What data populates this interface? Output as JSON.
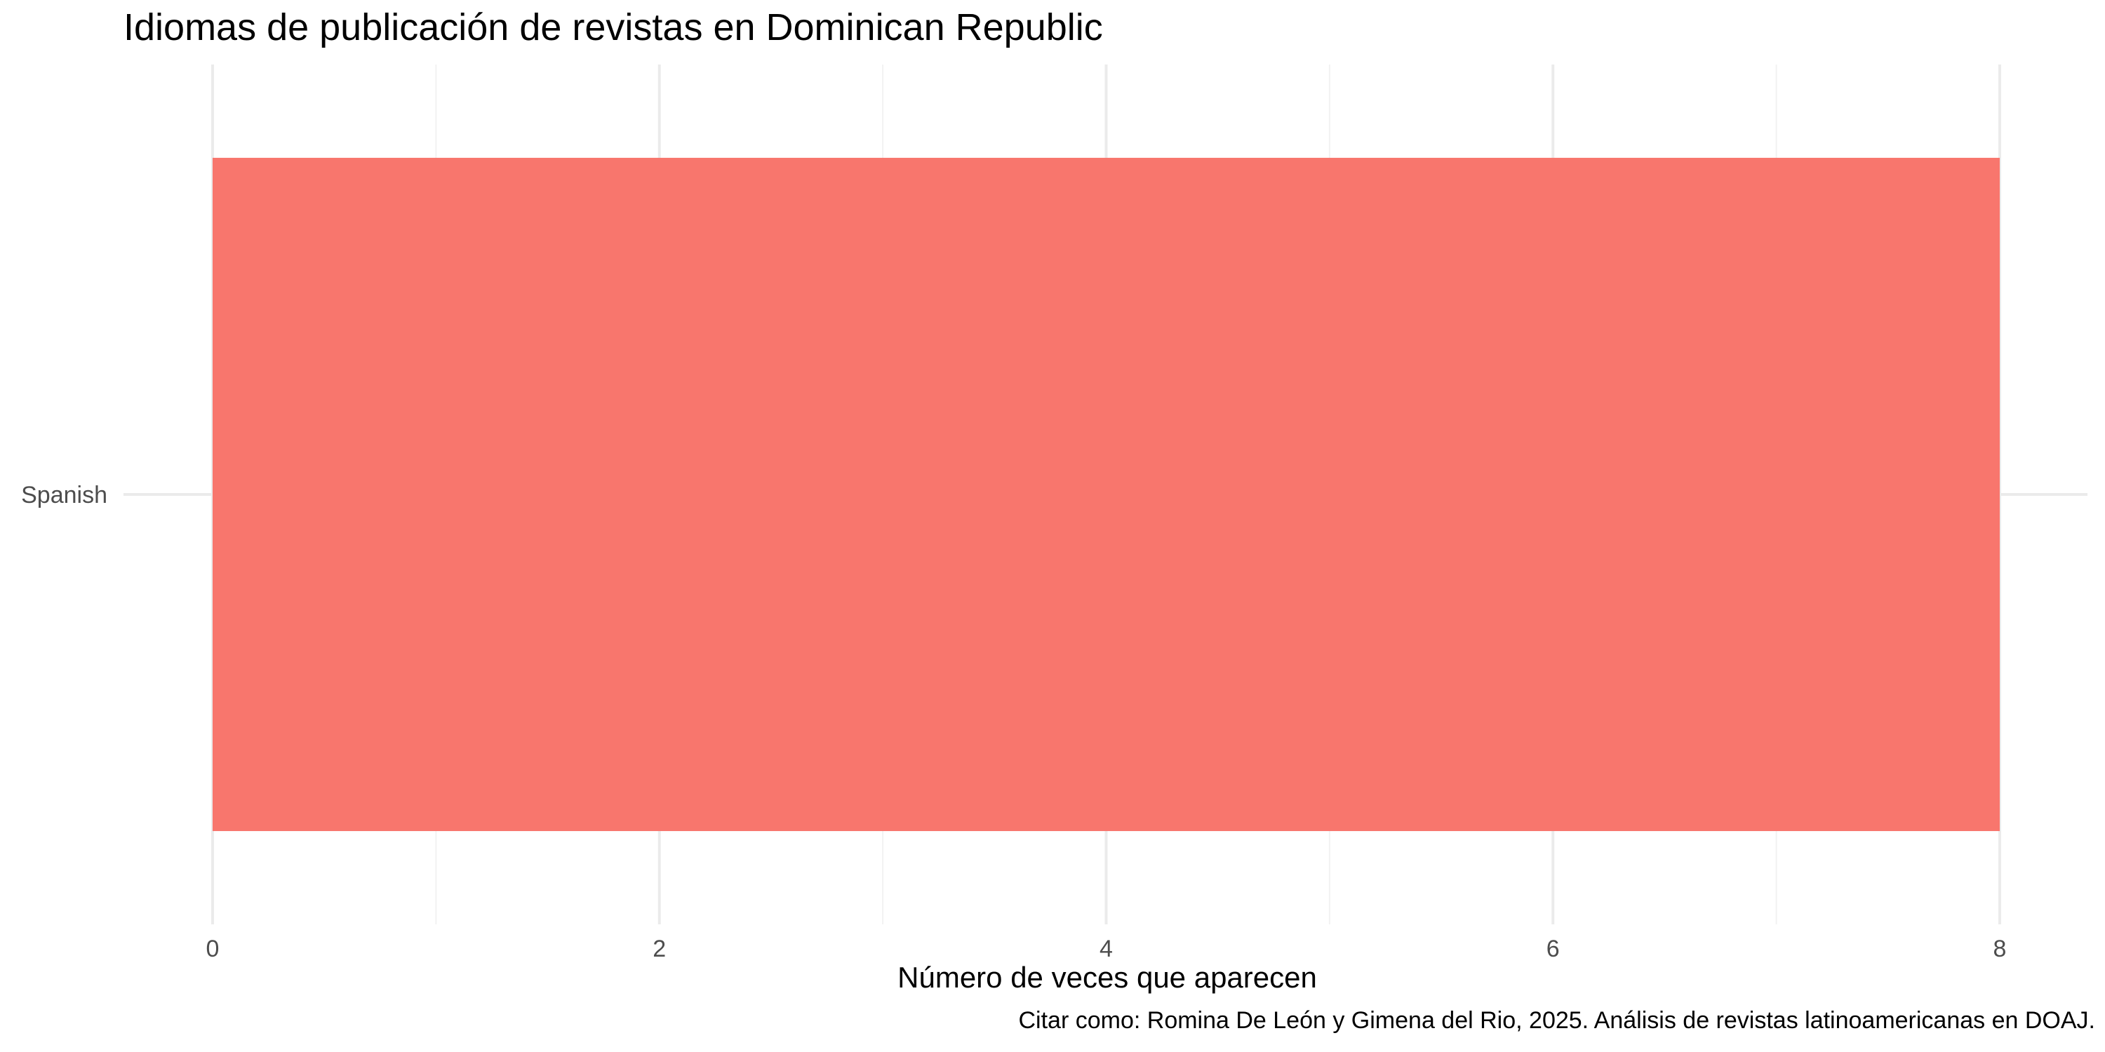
{
  "chart_data": {
    "type": "bar",
    "orientation": "horizontal",
    "title": "Idiomas de publicación de revistas en Dominican Republic",
    "xlabel": "Número de veces que aparecen",
    "ylabel": "",
    "caption": "Citar como: Romina De León y Gimena del Rio, 2025. Análisis de revistas latinoamericanas en DOAJ.",
    "categories": [
      "Spanish"
    ],
    "values": [
      8
    ],
    "xlim": [
      0,
      8
    ],
    "x_ticks": [
      0,
      2,
      4,
      6,
      8
    ],
    "grid": true,
    "legend": "none",
    "bar_color": "#F8766D"
  }
}
